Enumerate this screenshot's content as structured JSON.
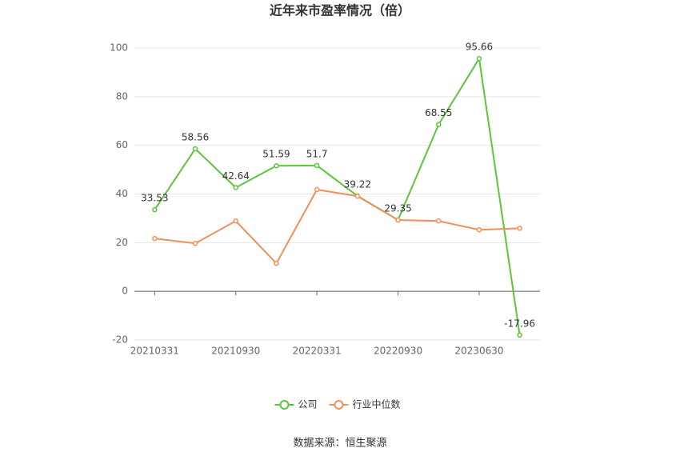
{
  "chart_data": {
    "type": "line",
    "title": "近年来市盈率情况（倍）",
    "categories": [
      "20210331",
      null,
      "20210930",
      null,
      "20220331",
      null,
      "20220930",
      null,
      "20230630",
      null
    ],
    "series": [
      {
        "name": "公司",
        "color": "#5ec53a",
        "values": [
          33.53,
          58.56,
          42.64,
          51.59,
          51.7,
          39.22,
          29.35,
          68.55,
          95.66,
          -17.96
        ]
      },
      {
        "name": "行业中位数",
        "color": "#f0905a",
        "values": [
          21.7,
          19.7,
          28.9,
          11.5,
          41.8,
          39.1,
          29.3,
          28.9,
          25.3,
          25.9
        ]
      }
    ],
    "ylim": [
      -20,
      100
    ],
    "yticks": [
      -20,
      0,
      20,
      40,
      60,
      80,
      100
    ],
    "grid": true,
    "legend": "bottom",
    "source": "数据来源：恒生聚源"
  }
}
